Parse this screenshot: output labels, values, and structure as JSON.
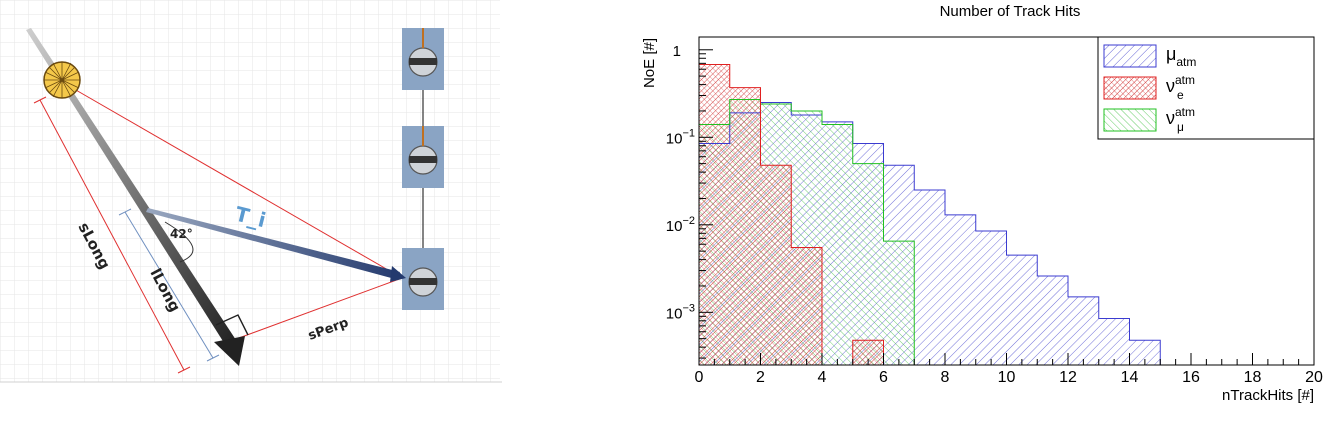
{
  "diagram": {
    "labels": {
      "slong": "sLong",
      "llong": "lLong",
      "sperp": "sPerp",
      "angle": "42°",
      "ti": "T_i"
    }
  },
  "chart_data": {
    "type": "histogram",
    "title": "Number of Track Hits",
    "xlabel": "nTrackHits [#]",
    "ylabel": "NoE [#]",
    "log_y": true,
    "xlim": [
      0,
      20
    ],
    "ylim": [
      0.00025,
      1.4
    ],
    "grid": false,
    "legend_position": "top-right",
    "bin_edges": [
      0,
      1,
      2,
      3,
      4,
      5,
      6,
      7,
      8,
      9,
      10,
      11,
      12,
      13,
      14,
      15,
      16,
      17,
      18,
      19,
      20
    ],
    "x_ticks": [
      "0",
      "2",
      "4",
      "6",
      "8",
      "10",
      "12",
      "14",
      "16",
      "18",
      "20"
    ],
    "y_ticks": [
      {
        "value": 1,
        "base": "1",
        "exp": ""
      },
      {
        "value": 0.1,
        "base": "10",
        "exp": "−1"
      },
      {
        "value": 0.01,
        "base": "10",
        "exp": "−2"
      },
      {
        "value": 0.001,
        "base": "10",
        "exp": "−3"
      }
    ],
    "series": [
      {
        "name": "μ",
        "sub": "atm",
        "sup": "",
        "color": "#3b3bd0",
        "values": [
          0.085,
          0.19,
          0.25,
          0.18,
          0.15,
          0.085,
          0.048,
          0.025,
          0.013,
          0.0085,
          0.0045,
          0.0026,
          0.0015,
          0.00085,
          0.00048,
          0,
          0,
          0,
          0,
          0
        ]
      },
      {
        "name": "ν",
        "sub": "e",
        "sup": "atm",
        "color": "#e02020",
        "values": [
          0.68,
          0.37,
          0.048,
          0.0055,
          0,
          0.00048,
          0,
          0,
          0,
          0,
          0,
          0,
          0,
          0,
          0,
          0,
          0,
          0,
          0,
          0
        ]
      },
      {
        "name": "ν",
        "sub": "μ",
        "sup": "atm",
        "color": "#20c020",
        "values": [
          0.14,
          0.27,
          0.24,
          0.2,
          0.14,
          0.05,
          0.0065,
          0,
          0,
          0,
          0,
          0,
          0,
          0,
          0,
          0,
          0,
          0,
          0,
          0
        ]
      }
    ]
  }
}
